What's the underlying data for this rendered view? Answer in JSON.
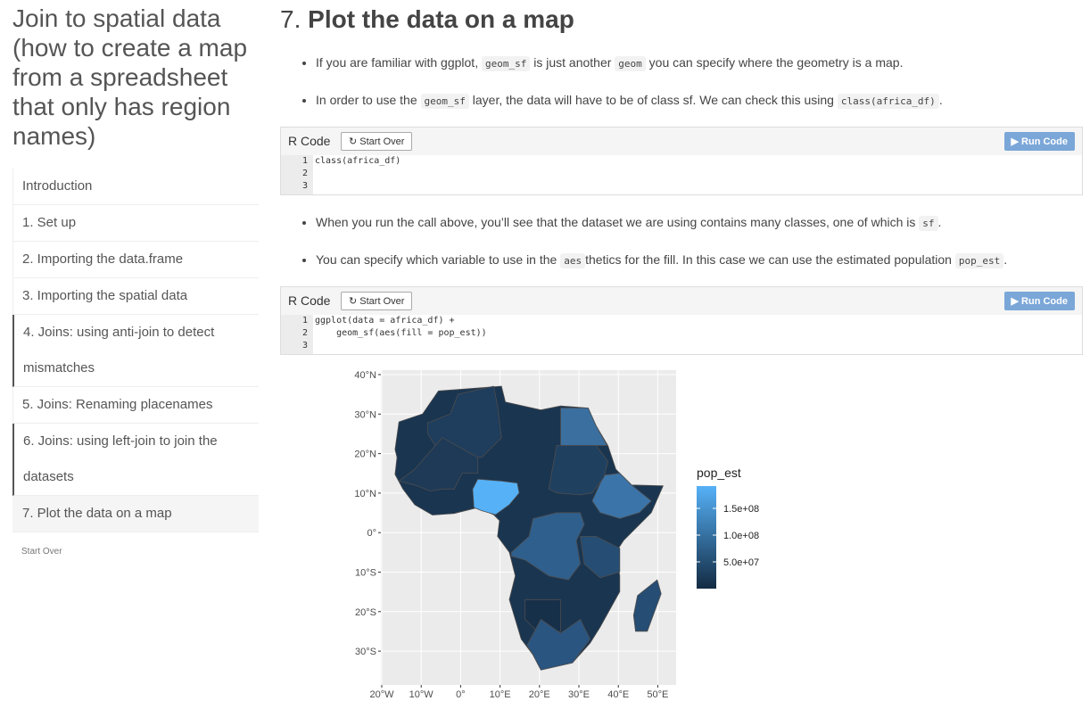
{
  "sidebar": {
    "title": "Join to spatial data (how to create a map from a spreadsheet that only has region names)",
    "items": [
      "Introduction",
      "1. Set up",
      "2. Importing the data.frame",
      "3. Importing the spatial data",
      "4. Joins: using anti-join to detect mismatches",
      "5. Joins: Renaming placenames",
      "6. Joins: using left-join to join the datasets",
      "7. Plot the data on a map"
    ],
    "start_over": "Start Over"
  },
  "main": {
    "heading_number": "7.",
    "heading": "Plot the data on a map",
    "bullets_a": [
      [
        {
          "t": "If you are familiar with ggplot, "
        },
        {
          "code": "geom_sf"
        },
        {
          "t": " is just another "
        },
        {
          "code": "geom"
        },
        {
          "t": " you can specify where the geometry is a map."
        }
      ],
      [
        {
          "t": "In order to use the "
        },
        {
          "code": "geom_sf"
        },
        {
          "t": " layer, the data will have to be of class sf. We can check this using "
        },
        {
          "code": "class(africa_df)"
        },
        {
          "t": "."
        }
      ]
    ],
    "code_a": {
      "label": "R Code",
      "start_over": "Start Over",
      "run": "Run Code",
      "line_numbers": [
        1,
        2,
        3
      ],
      "lines": [
        "class(africa_df)"
      ]
    },
    "bullets_b": [
      [
        {
          "t": "When you run the call above, you’ll see that the dataset we are using contains many classes, one of which is "
        },
        {
          "code": "sf"
        },
        {
          "t": "."
        }
      ],
      [
        {
          "t": "You can specify which variable to use in the "
        },
        {
          "code": "aes"
        },
        {
          "t": "thetics for the fill. In this case we can use the estimated population "
        },
        {
          "code": "pop_est"
        },
        {
          "t": "."
        }
      ]
    ],
    "code_b": {
      "label": "R Code",
      "start_over": "Start Over",
      "run": "Run Code",
      "line_numbers": [
        1,
        2,
        3
      ],
      "lines": [
        "ggplot(data = africa_df) +",
        "    geom_sf(aes(fill = pop_est))"
      ]
    },
    "plot": {
      "y_labels": [
        "40°N",
        "30°N",
        "20°N",
        "10°N",
        "0°",
        "10°S",
        "20°S",
        "30°S"
      ],
      "x_labels": [
        "20°W",
        "10°W",
        "0°",
        "10°E",
        "20°E",
        "30°E",
        "40°E",
        "50°E"
      ],
      "legend_title": "pop_est",
      "legend_labels": [
        "1.5e+08",
        "1.0e+08",
        "5.0e+07"
      ]
    }
  }
}
